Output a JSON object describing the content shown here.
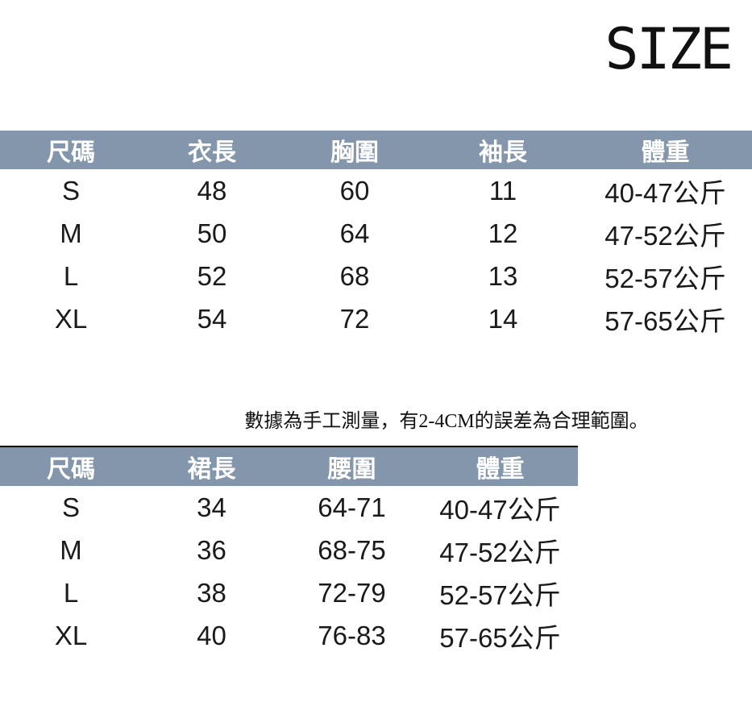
{
  "page": {
    "title": "SIZE"
  },
  "colors": {
    "header_bg": "#8496ab",
    "header_text": "#ffffff",
    "body_text": "#1a1a1a",
    "divider": "#000000"
  },
  "note": {
    "text": "數據為手工測量，有2-4CM的誤差為合理範圍。"
  },
  "table1": {
    "headers": [
      "尺碼",
      "衣長",
      "胸圍",
      "袖長",
      "體重"
    ],
    "rows": [
      [
        "S",
        "48",
        "60",
        "11",
        "40-47公斤"
      ],
      [
        "M",
        "50",
        "64",
        "12",
        "47-52公斤"
      ],
      [
        "L",
        "52",
        "68",
        "13",
        "52-57公斤"
      ],
      [
        "XL",
        "54",
        "72",
        "14",
        "57-65公斤"
      ]
    ]
  },
  "table2": {
    "headers": [
      "尺碼",
      "裙長",
      "腰圍",
      "體重"
    ],
    "rows": [
      [
        "S",
        "34",
        "64-71",
        "40-47公斤"
      ],
      [
        "M",
        "36",
        "68-75",
        "47-52公斤"
      ],
      [
        "L",
        "38",
        "72-79",
        "52-57公斤"
      ],
      [
        "XL",
        "40",
        "76-83",
        "57-65公斤"
      ]
    ]
  }
}
